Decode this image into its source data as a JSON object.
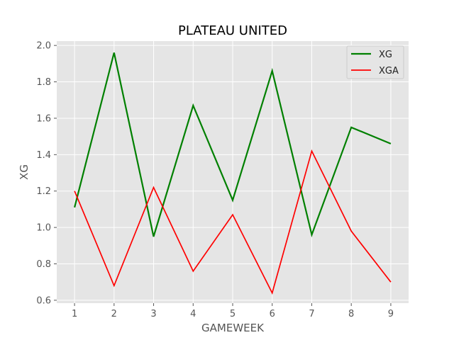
{
  "chart_data": {
    "type": "line",
    "title": "PLATEAU UNITED",
    "xlabel": "GAMEWEEK",
    "ylabel": "XG",
    "x": [
      1,
      2,
      3,
      4,
      5,
      6,
      7,
      8,
      9
    ],
    "xticks": [
      1,
      2,
      3,
      4,
      5,
      6,
      7,
      8,
      9
    ],
    "yticks": [
      0.6,
      0.8,
      1.0,
      1.2,
      1.4,
      1.6,
      1.8,
      2.0
    ],
    "ytick_labels": [
      "0.6",
      "0.8",
      "1.0",
      "1.2",
      "1.4",
      "1.6",
      "1.8",
      "2.0"
    ],
    "xlim": [
      0.55,
      9.45
    ],
    "ylim": [
      0.584,
      2.024
    ],
    "grid": true,
    "legend_position": "top-right",
    "background_color": "#e5e5e5",
    "series": [
      {
        "name": "XG",
        "color": "#008000",
        "values": [
          1.11,
          1.96,
          0.95,
          1.67,
          1.15,
          1.86,
          0.96,
          1.55,
          1.46
        ]
      },
      {
        "name": "XGA",
        "color": "#ff0000",
        "values": [
          1.2,
          0.68,
          1.22,
          0.76,
          1.07,
          0.64,
          1.42,
          0.98,
          0.7
        ]
      }
    ]
  }
}
